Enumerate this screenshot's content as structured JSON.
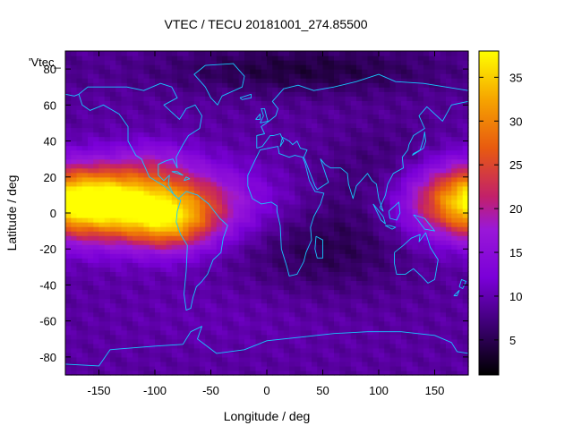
{
  "chart_data": {
    "type": "heatmap",
    "title": "VTEC / TECU 20181001_274.85500",
    "xlabel": "Longitude / deg",
    "ylabel": "Latitude / deg",
    "legend_key": "'Vtec_",
    "xlim": [
      -180,
      180
    ],
    "ylim": [
      -90,
      90
    ],
    "x_ticks": [
      -150,
      -100,
      -50,
      0,
      50,
      100,
      150
    ],
    "y_ticks": [
      -80,
      -60,
      -40,
      -20,
      0,
      20,
      40,
      60,
      80
    ],
    "colorbar": {
      "min": 1,
      "max": 38,
      "ticks": [
        5,
        10,
        15,
        20,
        25,
        30,
        35
      ]
    },
    "grid": false,
    "coastlines": true,
    "features": [
      {
        "lon": -115,
        "lat": 5,
        "sx": 60,
        "sy": 14,
        "vtec": 27
      },
      {
        "lon": -85,
        "lat": -8,
        "sx": 25,
        "sy": 10,
        "vtec": 10
      },
      {
        "lon": 180,
        "lat": 8,
        "sx": 38,
        "sy": 14,
        "vtec": 16
      },
      {
        "lon": -100,
        "lat": 30,
        "sx": 25,
        "sy": 8,
        "vtec": 4
      },
      {
        "lon": 50,
        "lat": -20,
        "sx": 55,
        "sy": 18,
        "vtec": -4
      },
      {
        "lon": 110,
        "lat": 20,
        "sx": 40,
        "sy": 20,
        "vtec": -3
      },
      {
        "lon": 30,
        "lat": 80,
        "sx": 90,
        "sy": 10,
        "vtec": -5
      },
      {
        "lon": -30,
        "lat": -55,
        "sx": 80,
        "sy": 15,
        "vtec": 1
      }
    ],
    "base_vtec": 9
  }
}
